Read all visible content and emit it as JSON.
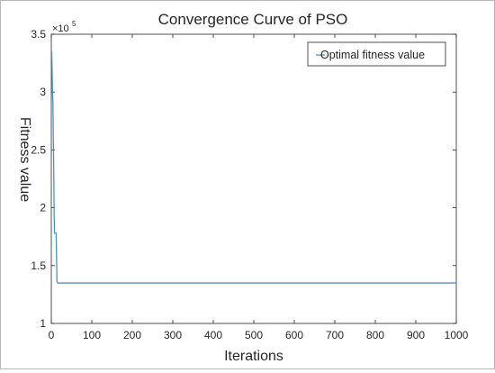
{
  "chart_data": {
    "type": "line",
    "title": "Convergence Curve of PSO",
    "xlabel": "Iterations",
    "ylabel": "Fitness value",
    "y_scale_label": {
      "base": "×10",
      "exponent": "5"
    },
    "xlim": [
      0,
      1000
    ],
    "ylim": [
      1,
      3.5
    ],
    "x_ticks": [
      0,
      100,
      200,
      300,
      400,
      500,
      600,
      700,
      800,
      900,
      1000
    ],
    "y_ticks": [
      1,
      1.5,
      2,
      2.5,
      3,
      3.5
    ],
    "y_tick_labels": [
      "1",
      "1.5",
      "2",
      "2.5",
      "3",
      "3.5"
    ],
    "grid": false,
    "legend_position": "top-right",
    "series": [
      {
        "name": "Optimal fitness value",
        "color": "#4f92b8",
        "x": [
          0,
          1,
          2,
          3,
          4,
          5,
          6,
          7,
          8,
          9,
          10,
          11,
          12,
          14,
          16,
          18,
          20,
          1000
        ],
        "values": [
          3.35,
          3.35,
          3.2,
          3.0,
          2.9,
          2.6,
          2.35,
          1.95,
          1.78,
          1.78,
          1.78,
          1.78,
          1.78,
          1.36,
          1.35,
          1.35,
          1.35,
          1.35
        ]
      }
    ]
  }
}
